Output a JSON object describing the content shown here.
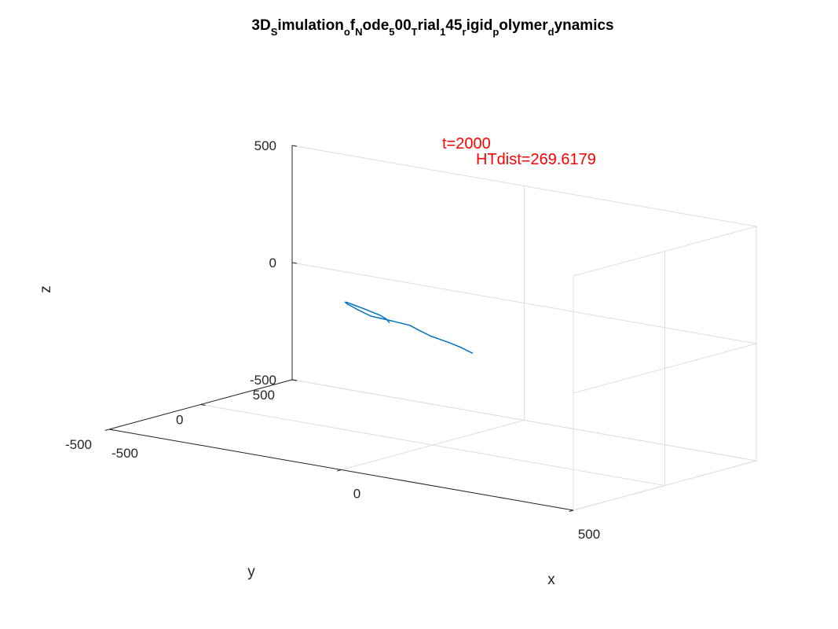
{
  "chart_data": {
    "type": "line",
    "dimensions": 3,
    "title_parts": [
      {
        "text": "3D",
        "sub": false
      },
      {
        "text": "S",
        "sub": true
      },
      {
        "text": "imulation",
        "sub": false
      },
      {
        "text": "o",
        "sub": true
      },
      {
        "text": "f",
        "sub": false
      },
      {
        "text": "N",
        "sub": true
      },
      {
        "text": "ode",
        "sub": false
      },
      {
        "text": "5",
        "sub": true
      },
      {
        "text": "00",
        "sub": false
      },
      {
        "text": "T",
        "sub": true
      },
      {
        "text": "rial",
        "sub": false
      },
      {
        "text": "1",
        "sub": true
      },
      {
        "text": "45",
        "sub": false
      },
      {
        "text": "r",
        "sub": true
      },
      {
        "text": "igid",
        "sub": false
      },
      {
        "text": "p",
        "sub": true
      },
      {
        "text": "olymer",
        "sub": false
      },
      {
        "text": "d",
        "sub": true
      },
      {
        "text": "ynamics",
        "sub": false
      }
    ],
    "xlabel": "x",
    "ylabel": "y",
    "zlabel": "z",
    "xlim": [
      -500,
      500
    ],
    "ylim": [
      -500,
      500
    ],
    "zlim": [
      -500,
      500
    ],
    "xticks": [
      -500,
      0,
      500
    ],
    "yticks": [
      -500,
      0,
      500
    ],
    "zticks": [
      -500,
      0,
      500
    ],
    "xtick_labels": [
      "-500",
      "0",
      "500"
    ],
    "ytick_labels": [
      "-500",
      "0",
      "500"
    ],
    "ztick_labels": [
      "-500",
      "0",
      "500"
    ],
    "grid": true,
    "line_color": "#0072bd",
    "annotation_color": "#ff0000",
    "annotations": [
      {
        "text": "t=2000",
        "x": 12,
        "y": 268,
        "z": 500
      },
      {
        "text": "HTdist=269.6179",
        "x": 12,
        "y": 268,
        "z": 500
      }
    ],
    "curve": [
      [
        38,
        120,
        -120
      ],
      [
        22,
        95,
        -95
      ],
      [
        8,
        70,
        -75
      ],
      [
        -2,
        42,
        -58
      ],
      [
        -10,
        15,
        -42
      ],
      [
        -22,
        -12,
        -18
      ],
      [
        -40,
        -24,
        2
      ],
      [
        -65,
        -30,
        8
      ],
      [
        -92,
        -36,
        14
      ],
      [
        -112,
        -52,
        22
      ],
      [
        -125,
        -66,
        38
      ],
      [
        -130,
        -84,
        52
      ],
      [
        -134,
        -104,
        68
      ],
      [
        -136,
        -124,
        82
      ],
      [
        -130,
        -148,
        96
      ],
      [
        -118,
        -170,
        104
      ],
      [
        -98,
        -182,
        102
      ],
      [
        -80,
        -184,
        96
      ],
      [
        -62,
        -176,
        84
      ],
      [
        -50,
        -160,
        70
      ],
      [
        -45,
        -140,
        52
      ],
      [
        -47,
        -118,
        32
      ]
    ]
  }
}
